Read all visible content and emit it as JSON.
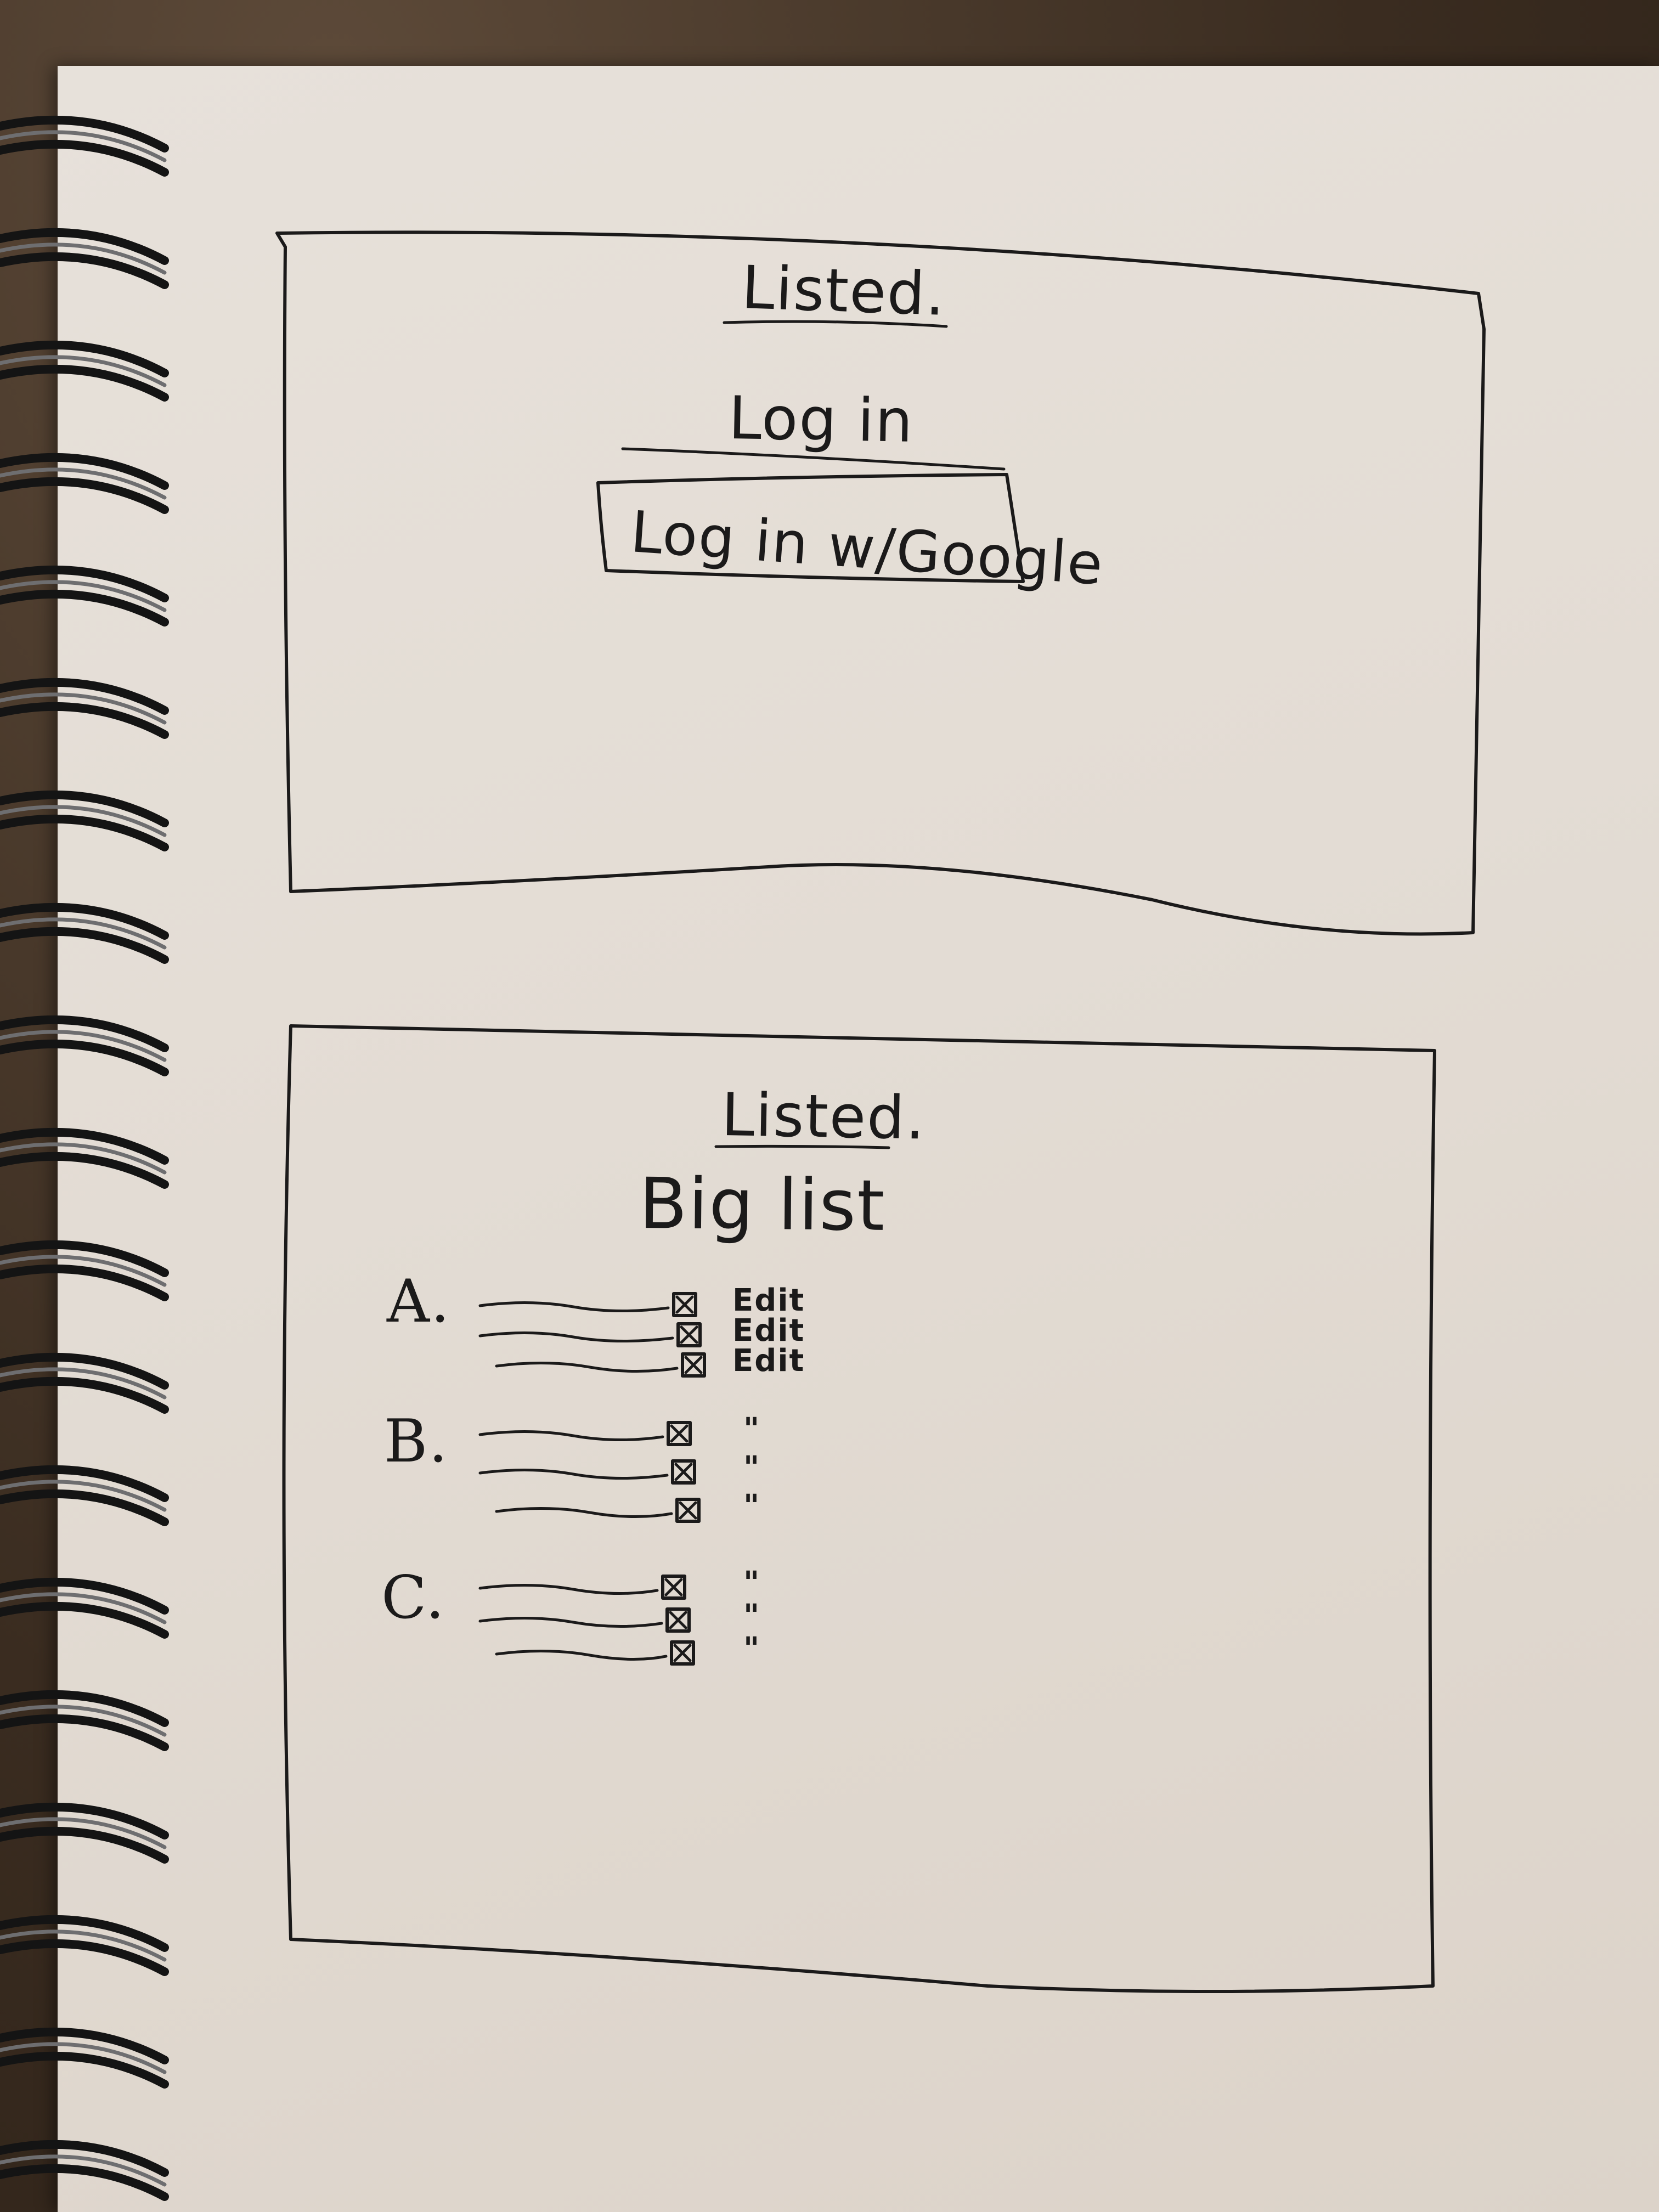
{
  "app": {
    "brand": "Listed.",
    "login_screen": {
      "heading": "Log in",
      "google_button_label": "Log in w/Google"
    },
    "list_screen": {
      "title": "Big list",
      "sections": [
        {
          "label": "A.",
          "items": [
            {
              "checked": true,
              "action": "Edit"
            },
            {
              "checked": true,
              "action": "Edit"
            },
            {
              "checked": true,
              "action": "Edit"
            }
          ]
        },
        {
          "label": "B.",
          "items": [
            {
              "checked": true,
              "action": "\""
            },
            {
              "checked": true,
              "action": "\""
            },
            {
              "checked": true,
              "action": "\""
            }
          ]
        },
        {
          "label": "C.",
          "items": [
            {
              "checked": true,
              "action": "\""
            },
            {
              "checked": true,
              "action": "\""
            },
            {
              "checked": true,
              "action": "\""
            }
          ]
        }
      ]
    }
  },
  "colors": {
    "paper": "#e3dcd4",
    "ink": "#1b1a1a",
    "background": "#3a2c20"
  }
}
